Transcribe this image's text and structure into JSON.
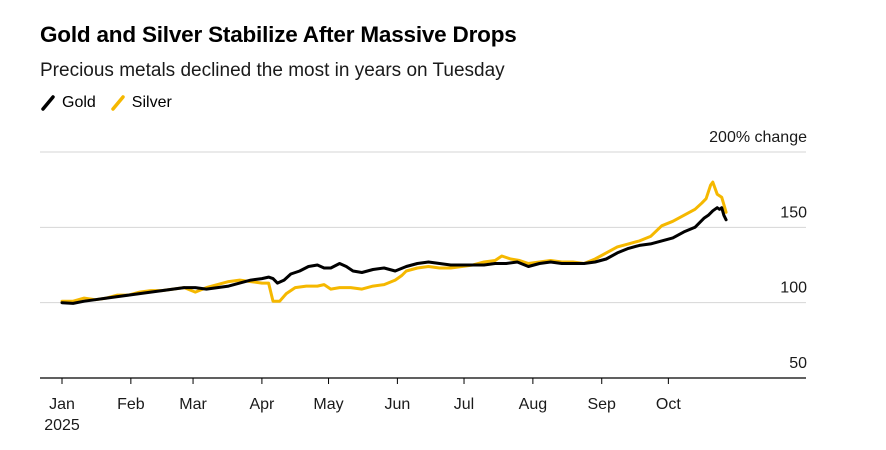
{
  "title": "Gold and Silver Stabilize After Massive Drops",
  "subtitle": "Precious metals declined the most in years on Tuesday",
  "legend": [
    {
      "name": "Gold",
      "color": "#000000"
    },
    {
      "name": "Silver",
      "color": "#f5b800"
    }
  ],
  "chart_data": {
    "type": "line",
    "title": "Gold and Silver Stabilize After Massive Drops",
    "ylabel": "% change",
    "y_unit_label": "200% change",
    "ylim": [
      50,
      200
    ],
    "yticks": [
      {
        "value": 200,
        "label": "200% change"
      },
      {
        "value": 150,
        "label": "150"
      },
      {
        "value": 100,
        "label": "100"
      },
      {
        "value": 50,
        "label": "50"
      }
    ],
    "x_range_days": [
      0,
      303
    ],
    "xticks": [
      {
        "day": 0,
        "label": "Jan",
        "sublabel": "2025"
      },
      {
        "day": 31,
        "label": "Feb"
      },
      {
        "day": 59,
        "label": "Mar"
      },
      {
        "day": 90,
        "label": "Apr"
      },
      {
        "day": 120,
        "label": "May"
      },
      {
        "day": 151,
        "label": "Jun"
      },
      {
        "day": 181,
        "label": "Jul"
      },
      {
        "day": 212,
        "label": "Aug"
      },
      {
        "day": 243,
        "label": "Sep"
      },
      {
        "day": 273,
        "label": "Oct"
      }
    ],
    "series": [
      {
        "name": "Gold",
        "color": "#000000",
        "points": [
          [
            0,
            100
          ],
          [
            5,
            99.5
          ],
          [
            10,
            101
          ],
          [
            15,
            102
          ],
          [
            20,
            103
          ],
          [
            25,
            104
          ],
          [
            30,
            105
          ],
          [
            35,
            106
          ],
          [
            40,
            107
          ],
          [
            45,
            108
          ],
          [
            50,
            109
          ],
          [
            55,
            110
          ],
          [
            60,
            110
          ],
          [
            65,
            109
          ],
          [
            70,
            110
          ],
          [
            75,
            111
          ],
          [
            80,
            113
          ],
          [
            85,
            115
          ],
          [
            90,
            116
          ],
          [
            93,
            117
          ],
          [
            95,
            116
          ],
          [
            97,
            113
          ],
          [
            100,
            115
          ],
          [
            103,
            119
          ],
          [
            107,
            121
          ],
          [
            111,
            124
          ],
          [
            115,
            125
          ],
          [
            118,
            123
          ],
          [
            121,
            123
          ],
          [
            125,
            126
          ],
          [
            128,
            124
          ],
          [
            131,
            121
          ],
          [
            135,
            120
          ],
          [
            140,
            122
          ],
          [
            145,
            123
          ],
          [
            150,
            121
          ],
          [
            155,
            124
          ],
          [
            160,
            126
          ],
          [
            165,
            127
          ],
          [
            170,
            126
          ],
          [
            175,
            125
          ],
          [
            180,
            125
          ],
          [
            185,
            125
          ],
          [
            190,
            125
          ],
          [
            195,
            126
          ],
          [
            200,
            126
          ],
          [
            205,
            127
          ],
          [
            210,
            124
          ],
          [
            215,
            126
          ],
          [
            220,
            127
          ],
          [
            225,
            126
          ],
          [
            230,
            126
          ],
          [
            235,
            126
          ],
          [
            240,
            127
          ],
          [
            245,
            129
          ],
          [
            250,
            133
          ],
          [
            255,
            136
          ],
          [
            260,
            138
          ],
          [
            265,
            139
          ],
          [
            270,
            141
          ],
          [
            275,
            143
          ],
          [
            280,
            147
          ],
          [
            285,
            150
          ],
          [
            289,
            156
          ],
          [
            291,
            158
          ],
          [
            293,
            161
          ],
          [
            295,
            163
          ],
          [
            296,
            162
          ],
          [
            297,
            163
          ],
          [
            298,
            158
          ],
          [
            299,
            155
          ]
        ]
      },
      {
        "name": "Silver",
        "color": "#f5b800",
        "points": [
          [
            0,
            101
          ],
          [
            5,
            101
          ],
          [
            10,
            103
          ],
          [
            15,
            102
          ],
          [
            20,
            103
          ],
          [
            25,
            105
          ],
          [
            30,
            105
          ],
          [
            35,
            107
          ],
          [
            40,
            108
          ],
          [
            45,
            108
          ],
          [
            50,
            109
          ],
          [
            55,
            110
          ],
          [
            60,
            107
          ],
          [
            65,
            110
          ],
          [
            70,
            112
          ],
          [
            75,
            114
          ],
          [
            80,
            115
          ],
          [
            85,
            114
          ],
          [
            90,
            113
          ],
          [
            93,
            113
          ],
          [
            95,
            101
          ],
          [
            98,
            101
          ],
          [
            101,
            106
          ],
          [
            105,
            110
          ],
          [
            110,
            111
          ],
          [
            115,
            111
          ],
          [
            118,
            112
          ],
          [
            121,
            109
          ],
          [
            125,
            110
          ],
          [
            130,
            110
          ],
          [
            135,
            109
          ],
          [
            140,
            111
          ],
          [
            145,
            112
          ],
          [
            150,
            115
          ],
          [
            153,
            118
          ],
          [
            155,
            121
          ],
          [
            160,
            123
          ],
          [
            165,
            124
          ],
          [
            170,
            123
          ],
          [
            175,
            123
          ],
          [
            180,
            124
          ],
          [
            185,
            125
          ],
          [
            190,
            127
          ],
          [
            195,
            128
          ],
          [
            198,
            131
          ],
          [
            202,
            129
          ],
          [
            206,
            128
          ],
          [
            210,
            126
          ],
          [
            215,
            127
          ],
          [
            220,
            128
          ],
          [
            225,
            127
          ],
          [
            230,
            127
          ],
          [
            235,
            126
          ],
          [
            240,
            129
          ],
          [
            245,
            133
          ],
          [
            250,
            137
          ],
          [
            255,
            139
          ],
          [
            260,
            141
          ],
          [
            265,
            144
          ],
          [
            270,
            151
          ],
          [
            275,
            154
          ],
          [
            280,
            158
          ],
          [
            285,
            162
          ],
          [
            288,
            166
          ],
          [
            290,
            169
          ],
          [
            292,
            178
          ],
          [
            293,
            180
          ],
          [
            295,
            172
          ],
          [
            297,
            170
          ],
          [
            298,
            165
          ],
          [
            299,
            160
          ]
        ]
      }
    ]
  }
}
